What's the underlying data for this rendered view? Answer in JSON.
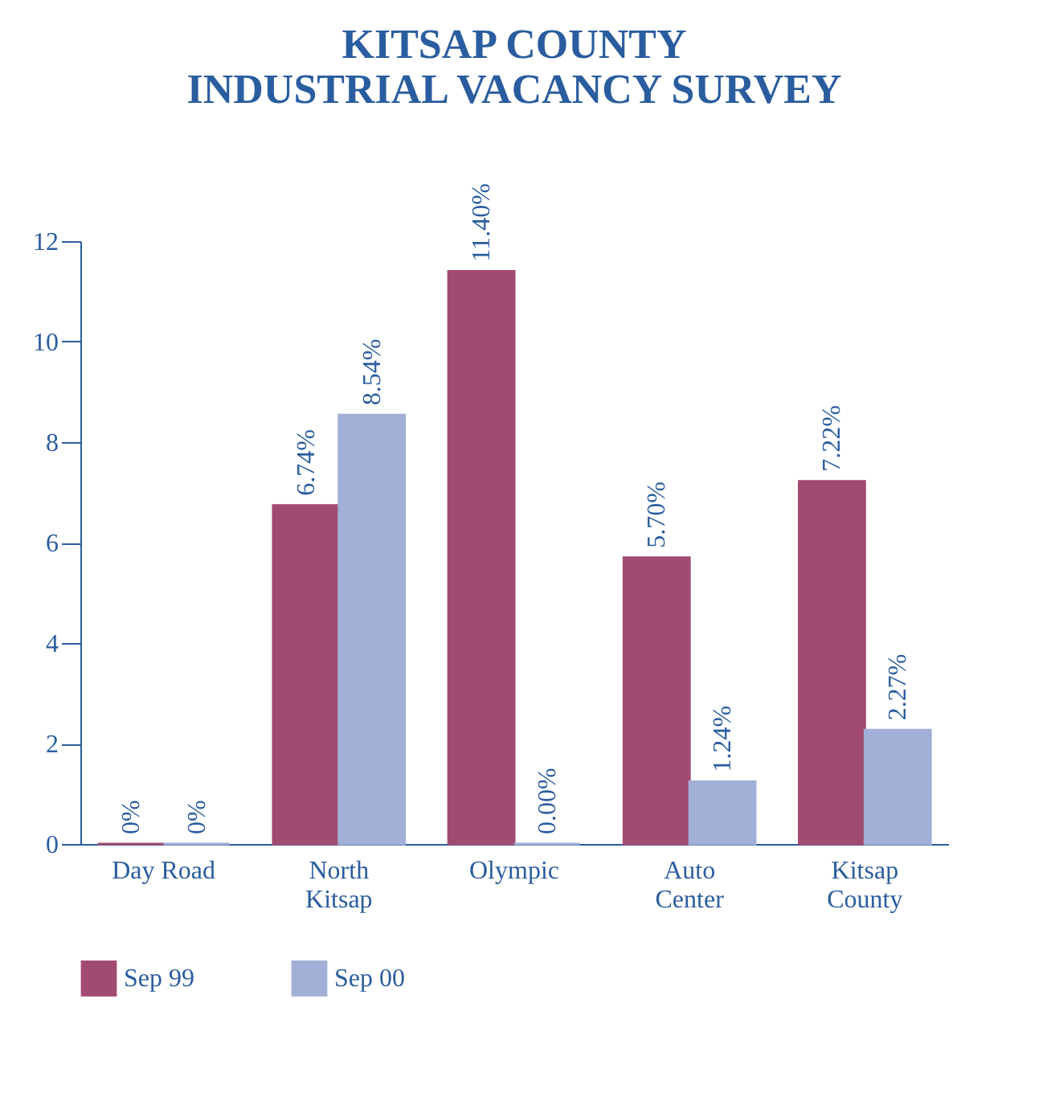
{
  "chart_data": {
    "type": "bar",
    "title": [
      "KITSAP COUNTY",
      "INDUSTRIAL VACANCY SURVEY"
    ],
    "categories": [
      "Day Road",
      "North\nKitsap",
      "Olympic",
      "Auto\nCenter",
      "Kitsap\nCounty"
    ],
    "series": [
      {
        "name": "Sep 99",
        "color": "#a24b72",
        "values": [
          0,
          6.74,
          11.4,
          5.7,
          7.22
        ],
        "value_labels": [
          "0%",
          "6.74%",
          "11.40%",
          "5.70%",
          "7.22%"
        ]
      },
      {
        "name": "Sep 00",
        "color": "#a2afd7",
        "values": [
          0,
          8.54,
          0.0,
          1.24,
          2.27
        ],
        "value_labels": [
          "0%",
          "8.54%",
          "0.00%",
          "1.24%",
          "2.27%"
        ]
      }
    ],
    "ylim": [
      0,
      12
    ],
    "yticks": [
      0,
      2,
      4,
      6,
      8,
      10,
      12
    ],
    "grid": false,
    "legend": "bottom"
  }
}
